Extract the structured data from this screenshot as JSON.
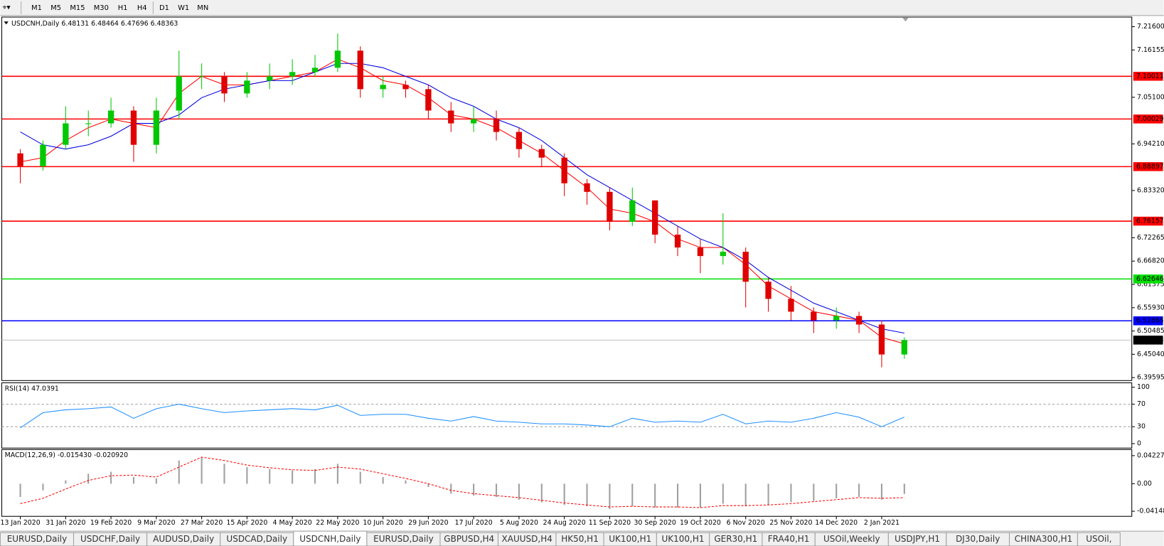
{
  "toolbar": {
    "timeframes": [
      "M1",
      "M5",
      "M15",
      "M30",
      "H1",
      "H4",
      "D1",
      "W1",
      "MN"
    ]
  },
  "chart_data": [
    {
      "type": "candlestick",
      "title": "USDCNH,Daily  6.48131 6.48464 6.47696 6.48363",
      "categories": [
        "13 Jan 2020",
        null,
        "31 Jan 2020",
        null,
        "19 Feb 2020",
        null,
        "9 Mar 2020",
        null,
        "27 Mar 2020",
        null,
        "15 Apr 2020",
        null,
        "4 May 2020",
        null,
        "22 May 2020",
        null,
        "10 Jun 2020",
        null,
        "29 Jun 2020",
        null,
        "17 Jul 2020",
        null,
        "5 Aug 2020",
        null,
        "24 Aug 2020",
        null,
        "11 Sep 2020",
        null,
        "30 Sep 2020",
        null,
        "19 Oct 2020",
        null,
        "6 Nov 2020",
        null,
        "25 Nov 2020",
        null,
        "14 Dec 2020",
        null,
        "2 Jan 2021",
        null
      ],
      "open": [
        6.92,
        6.89,
        6.94,
        6.99,
        6.99,
        7.02,
        6.94,
        7.02,
        7.1,
        7.1,
        7.06,
        7.09,
        7.1,
        7.11,
        7.12,
        7.16,
        7.07,
        7.08,
        7.07,
        7.02,
        6.99,
        7.0,
        6.97,
        6.93,
        6.91,
        6.85,
        6.83,
        6.76,
        6.81,
        6.73,
        6.7,
        6.68,
        6.69,
        6.62,
        6.58,
        6.55,
        6.53,
        6.54,
        6.52,
        6.45
      ],
      "high": [
        6.93,
        6.95,
        7.03,
        7.02,
        7.05,
        7.03,
        7.05,
        7.16,
        7.13,
        7.11,
        7.11,
        7.13,
        7.14,
        7.15,
        7.2,
        7.17,
        7.1,
        7.09,
        7.08,
        7.04,
        7.03,
        7.02,
        6.98,
        6.94,
        6.92,
        6.86,
        6.84,
        6.84,
        6.81,
        6.75,
        6.72,
        6.78,
        6.7,
        6.63,
        6.61,
        6.56,
        6.56,
        6.55,
        6.53,
        6.49
      ],
      "low": [
        6.85,
        6.88,
        6.93,
        6.96,
        6.98,
        6.9,
        6.92,
        7.0,
        7.07,
        7.04,
        7.05,
        7.07,
        7.08,
        7.1,
        7.11,
        7.05,
        7.05,
        7.05,
        7.0,
        6.97,
        6.97,
        6.95,
        6.91,
        6.89,
        6.82,
        6.8,
        6.74,
        6.75,
        6.71,
        6.68,
        6.64,
        6.66,
        6.56,
        6.55,
        6.53,
        6.5,
        6.51,
        6.5,
        6.42,
        6.44
      ],
      "close": [
        6.89,
        6.94,
        6.99,
        6.99,
        7.02,
        6.94,
        7.02,
        7.1,
        7.1,
        7.06,
        7.09,
        7.1,
        7.11,
        7.12,
        7.16,
        7.07,
        7.08,
        7.07,
        7.02,
        6.99,
        7.0,
        6.97,
        6.93,
        6.91,
        6.85,
        6.83,
        6.76,
        6.81,
        6.73,
        6.7,
        6.68,
        6.69,
        6.62,
        6.58,
        6.55,
        6.53,
        6.54,
        6.52,
        6.45,
        6.48363
      ],
      "up_color": "#00c800",
      "down_color": "#e00000",
      "series": [
        {
          "color": "#ff0000",
          "values": [
            6.9,
            6.91,
            6.95,
            6.98,
            7.0,
            6.99,
            6.98,
            7.06,
            7.1,
            7.08,
            7.08,
            7.09,
            7.1,
            7.11,
            7.14,
            7.12,
            7.09,
            7.08,
            7.05,
            7.01,
            7.0,
            6.98,
            6.95,
            6.92,
            6.88,
            6.84,
            6.79,
            6.78,
            6.76,
            6.72,
            6.7,
            6.7,
            6.66,
            6.61,
            6.58,
            6.55,
            6.54,
            6.53,
            6.49,
            6.475
          ]
        },
        {
          "color": "#0000e0",
          "values": [
            6.97,
            6.94,
            6.93,
            6.94,
            6.96,
            6.99,
            6.99,
            7.01,
            7.05,
            7.07,
            7.08,
            7.09,
            7.09,
            7.11,
            7.13,
            7.13,
            7.12,
            7.1,
            7.08,
            7.05,
            7.03,
            7.0,
            6.98,
            6.95,
            6.91,
            6.87,
            6.84,
            6.81,
            6.78,
            6.75,
            6.72,
            6.7,
            6.67,
            6.63,
            6.6,
            6.57,
            6.55,
            6.53,
            6.51,
            6.5
          ]
        }
      ],
      "ylim": [
        6.3925,
        7.235
      ],
      "yticks": [
        {
          "value": 7.216,
          "label": "7.21600"
        },
        {
          "value": 7.16155,
          "label": "7.16155"
        },
        {
          "value": 7.051,
          "label": "7.05100"
        },
        {
          "value": 6.9421,
          "label": "6.94210"
        },
        {
          "value": 6.8332,
          "label": "6.83320"
        },
        {
          "value": 6.72265,
          "label": "6.72265"
        },
        {
          "value": 6.6682,
          "label": "6.66820"
        },
        {
          "value": 6.61375,
          "label": "6.61375"
        },
        {
          "value": 6.5593,
          "label": "6.55930"
        },
        {
          "value": 6.50485,
          "label": "6.50485"
        },
        {
          "value": 6.4504,
          "label": "6.45040"
        },
        {
          "value": 6.39595,
          "label": "6.39595"
        }
      ],
      "levels": [
        {
          "value": 7.10011,
          "color": "#ff0000"
        },
        {
          "value": 7.00029,
          "color": "#ff0000"
        },
        {
          "value": 6.88897,
          "color": "#ff0000"
        },
        {
          "value": 6.76157,
          "color": "#ff0000"
        },
        {
          "value": 6.62646,
          "color": "#00e000"
        },
        {
          "value": 6.52865,
          "color": "#0000ff"
        }
      ],
      "current_price": 6.48363
    },
    {
      "type": "line",
      "title": "RSI(14) 47.0391",
      "series": [
        {
          "color": "#1e90ff",
          "values": [
            28,
            55,
            60,
            62,
            65,
            45,
            62,
            70,
            62,
            55,
            58,
            60,
            62,
            60,
            68,
            50,
            52,
            52,
            45,
            40,
            48,
            40,
            38,
            35,
            35,
            33,
            30,
            45,
            38,
            40,
            38,
            52,
            35,
            40,
            38,
            45,
            55,
            47,
            30,
            47.0391
          ]
        }
      ],
      "ylim": [
        -6.6,
        106.6
      ],
      "yticks": [
        100,
        70,
        30,
        0
      ],
      "levels": [
        70,
        30
      ]
    },
    {
      "type": "macd",
      "title": "MACD(12,26,9) -0.015430 -0.020920",
      "histogram": {
        "color": "#a0a0a0",
        "values": [
          -0.02,
          -0.01,
          0.005,
          0.015,
          0.018,
          0.01,
          0.008,
          0.035,
          0.04,
          0.03,
          0.025,
          0.022,
          0.02,
          0.022,
          0.03,
          0.018,
          0.01,
          0.005,
          -0.005,
          -0.015,
          -0.018,
          -0.02,
          -0.024,
          -0.028,
          -0.032,
          -0.034,
          -0.038,
          -0.034,
          -0.036,
          -0.036,
          -0.036,
          -0.03,
          -0.034,
          -0.032,
          -0.028,
          -0.026,
          -0.022,
          -0.02,
          -0.024,
          -0.01543
        ]
      },
      "signal": {
        "color": "#ff0000",
        "values": [
          -0.03,
          -0.022,
          -0.008,
          0.005,
          0.012,
          0.013,
          0.01,
          0.025,
          0.04,
          0.035,
          0.028,
          0.024,
          0.021,
          0.02,
          0.025,
          0.022,
          0.015,
          0.008,
          0.0,
          -0.01,
          -0.015,
          -0.018,
          -0.021,
          -0.025,
          -0.029,
          -0.032,
          -0.035,
          -0.034,
          -0.035,
          -0.035,
          -0.036,
          -0.033,
          -0.033,
          -0.032,
          -0.03,
          -0.027,
          -0.024,
          -0.021,
          -0.022,
          -0.02092
        ]
      },
      "ylim": [
        -0.048,
        0.0503
      ],
      "yticks": [
        {
          "value": 0.042275,
          "label": "0.042275"
        },
        {
          "value": 0,
          "label": "0.00"
        },
        {
          "value": -0.04148,
          "label": "-0.04148"
        }
      ]
    }
  ],
  "tabs": [
    "EURUSD,Daily",
    "USDCHF,Daily",
    "AUDUSD,Daily",
    "USDCAD,Daily",
    "USDCNH,Daily",
    "EURUSD,Daily",
    "GBPUSD,H4",
    "XAUUSD,H4",
    "HK50,H1",
    "UK100,H1",
    "UK100,H1",
    "GER30,H1",
    "FRA40,H1",
    "USOil,Weekly",
    "USDJPY,H1",
    "DJ30,Daily",
    "CHINA300,H1",
    "USOil,"
  ],
  "active_tab": 4
}
